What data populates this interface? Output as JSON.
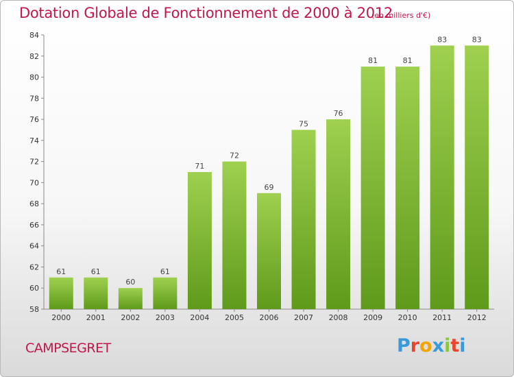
{
  "header": {
    "title": "Dotation Globale de Fonctionnement de 2000 à 2012",
    "unit": "(en milliers d'€)"
  },
  "footer": {
    "commune": "CAMPSEGRET",
    "brand_letters": [
      "P",
      "r",
      "o",
      "x",
      "i",
      "t",
      "i"
    ],
    "brand_colors": [
      "#3a9ad9",
      "#e8452c",
      "#f0a500",
      "#3a9ad9",
      "#8cc63f",
      "#e8452c",
      "#3a9ad9"
    ]
  },
  "colors": {
    "bar_top": "#9fd04f",
    "bar_bottom": "#5f9a1b",
    "accent": "#c0174a"
  },
  "chart_data": {
    "type": "bar",
    "title": "Dotation Globale de Fonctionnement de 2000 à 2012",
    "categories": [
      "2000",
      "2001",
      "2002",
      "2003",
      "2004",
      "2005",
      "2006",
      "2007",
      "2008",
      "2009",
      "2010",
      "2011",
      "2012"
    ],
    "values": [
      61,
      61,
      60,
      61,
      71,
      72,
      69,
      75,
      76,
      81,
      81,
      83,
      83
    ],
    "ylim": [
      58,
      84
    ],
    "yticks": [
      58,
      60,
      62,
      64,
      66,
      68,
      70,
      72,
      74,
      76,
      78,
      80,
      82,
      84
    ],
    "grid": false,
    "legend": "none"
  }
}
